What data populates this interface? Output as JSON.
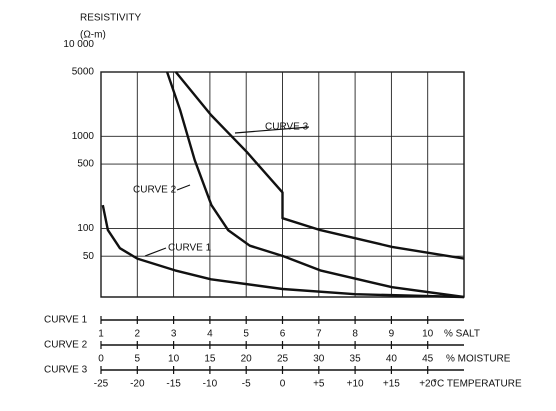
{
  "chart_data": {
    "type": "line",
    "ylabel_lines": [
      "RESISTIVITY",
      "(Ω-m)"
    ],
    "log_y": true,
    "ylim": [
      18,
      5000
    ],
    "yticks": [
      {
        "value": 10000,
        "label": "10 000"
      },
      5000,
      1000,
      500,
      100,
      50
    ],
    "grid": true,
    "x_axes": [
      {
        "name": "CURVE 1",
        "label": "% SALT",
        "xlim": [
          1,
          11
        ],
        "xticks": [
          1,
          2,
          3,
          4,
          5,
          6,
          7,
          8,
          9,
          10
        ]
      },
      {
        "name": "CURVE 2",
        "label": "% MOISTURE",
        "xlim": [
          0,
          50
        ],
        "xticks": [
          0,
          5,
          10,
          15,
          20,
          25,
          30,
          35,
          40,
          45
        ]
      },
      {
        "name": "CURVE 3",
        "label": "°C TEMPERATURE",
        "xlim": [
          -25,
          25
        ],
        "xticks": [
          -25,
          -20,
          -15,
          -10,
          -5,
          0,
          {
            "value": 5,
            "label": "+5"
          },
          {
            "value": 10,
            "label": "+10"
          },
          {
            "value": 15,
            "label": "+15"
          },
          {
            "value": 20,
            "label": "+20"
          }
        ]
      }
    ],
    "series": [
      {
        "name": "CURVE 1",
        "color": "#111111",
        "x": [
          1.05,
          1.19,
          1.52,
          2,
          3.04,
          4.03,
          6,
          8,
          11
        ],
        "values": [
          179,
          96,
          61,
          47,
          35,
          28,
          22,
          19.3,
          18
        ]
      },
      {
        "name": "CURVE 2",
        "color": "#111111",
        "x": [
          9.1,
          10.9,
          12.9,
          15.2,
          17.5,
          20.5,
          25.1,
          30.2,
          40.1,
          50
        ],
        "values": [
          5000,
          1932,
          552,
          179,
          96,
          65,
          50,
          35,
          23,
          18
        ]
      },
      {
        "name": "CURVE 3",
        "color": "#111111",
        "x": [
          -14.7,
          -9.85,
          -4.9,
          0,
          0,
          5.2,
          15.1,
          25
        ],
        "values": [
          5000,
          1705,
          675,
          246,
          129,
          96,
          63,
          47
        ]
      }
    ]
  }
}
